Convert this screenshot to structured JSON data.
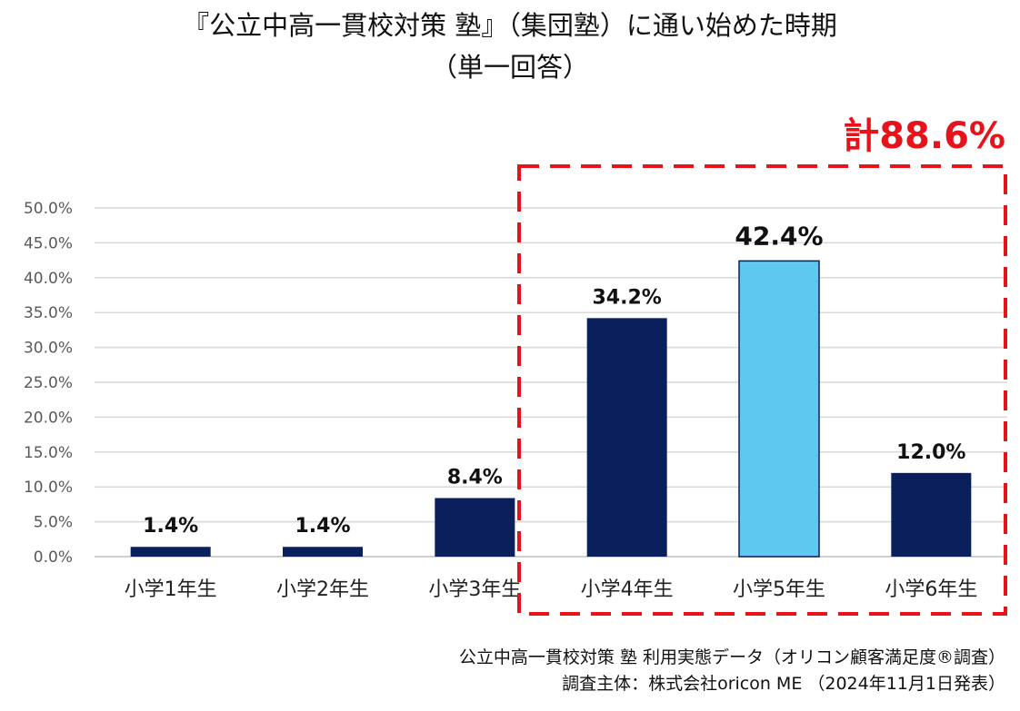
{
  "chart_data": {
    "type": "bar",
    "title": "『公立中高一貫校対策 塾』（集団塾）に通い始めた時期",
    "subtitle": "（単一回答）",
    "categories": [
      "小学1年生",
      "小学2年生",
      "小学3年生",
      "小学4年生",
      "小学5年生",
      "小学6年生"
    ],
    "values": [
      1.4,
      1.4,
      8.4,
      34.2,
      42.4,
      12.0
    ],
    "value_labels": [
      "1.4%",
      "1.4%",
      "8.4%",
      "34.2%",
      "42.4%",
      "12.0%"
    ],
    "highlight_index": 4,
    "colors": {
      "bar": "#0b1f5c",
      "highlight": "#5ec8f0",
      "total": "#e8131a",
      "grid": "#d9d9d9"
    },
    "ylim": [
      0,
      50
    ],
    "yticks": [
      0,
      5,
      10,
      15,
      20,
      25,
      30,
      35,
      40,
      45,
      50
    ],
    "ytick_labels": [
      "0.0%",
      "5.0%",
      "10.0%",
      "15.0%",
      "20.0%",
      "25.0%",
      "30.0%",
      "35.0%",
      "40.0%",
      "45.0%",
      "50.0%"
    ],
    "grid": true,
    "annotation": {
      "text": "計88.6%",
      "range": [
        3,
        5
      ]
    }
  },
  "source": {
    "line1": "公立中高一貫校対策 塾 利用実態データ（オリコン顧客満足度®調査）",
    "line2": "調査主体：株式会社oricon ME （2024年11月1日発表）"
  }
}
